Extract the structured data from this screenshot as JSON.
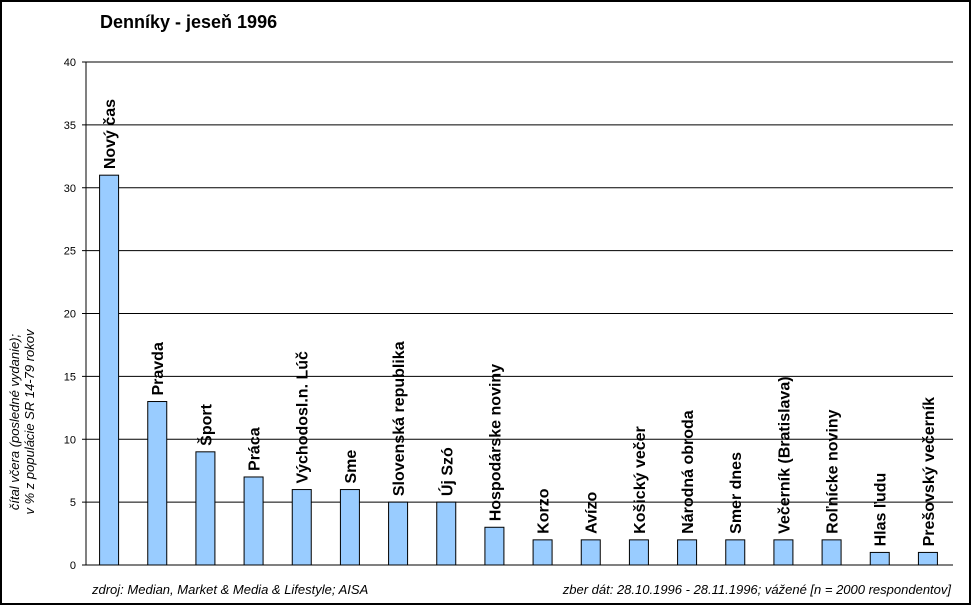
{
  "title": "Denníky - jeseň 1996",
  "ylabel": [
    "čítal včera (posledné vydanie);",
    "v % z populácie SR 14-79 rokov"
  ],
  "footer": {
    "source": "zdroj: Median, Market & Media & Lifestyle; AISA",
    "note": "zber dát: 28.10.1996 - 28.11.1996; vážené [n = 2000 respondentov]"
  },
  "colors": {
    "bar": "#99ccff",
    "bar_stroke": "#000000",
    "grid": "#000000",
    "frame_bg": "#c0c0c0"
  },
  "chart_data": {
    "type": "bar",
    "title": "Denníky - jeseň 1996",
    "ylabel": "čítal včera (posledné vydanie); v % z populácie SR 14-79 rokov",
    "xlabel": "",
    "ylim": [
      0,
      40
    ],
    "yticks": [
      0,
      5,
      10,
      15,
      20,
      25,
      30,
      35,
      40
    ],
    "grid": true,
    "legend": "none",
    "categories": [
      "Nový čas",
      "Pravda",
      "Šport",
      "Práca",
      "Východosl.n. Lúč",
      "Sme",
      "Slovenská republika",
      "Új Szó",
      "Hospodárske noviny",
      "Korzo",
      "Avízo",
      "Košický večer",
      "Národná obroda",
      "Smer dnes",
      "Večerník (Bratislava)",
      "Roľnícke noviny",
      "Hlas ľudu",
      "Prešovský večerník"
    ],
    "values": [
      31,
      13,
      9,
      7,
      6,
      6,
      5,
      5,
      3,
      2,
      2,
      2,
      2,
      2,
      2,
      2,
      1,
      1
    ]
  }
}
